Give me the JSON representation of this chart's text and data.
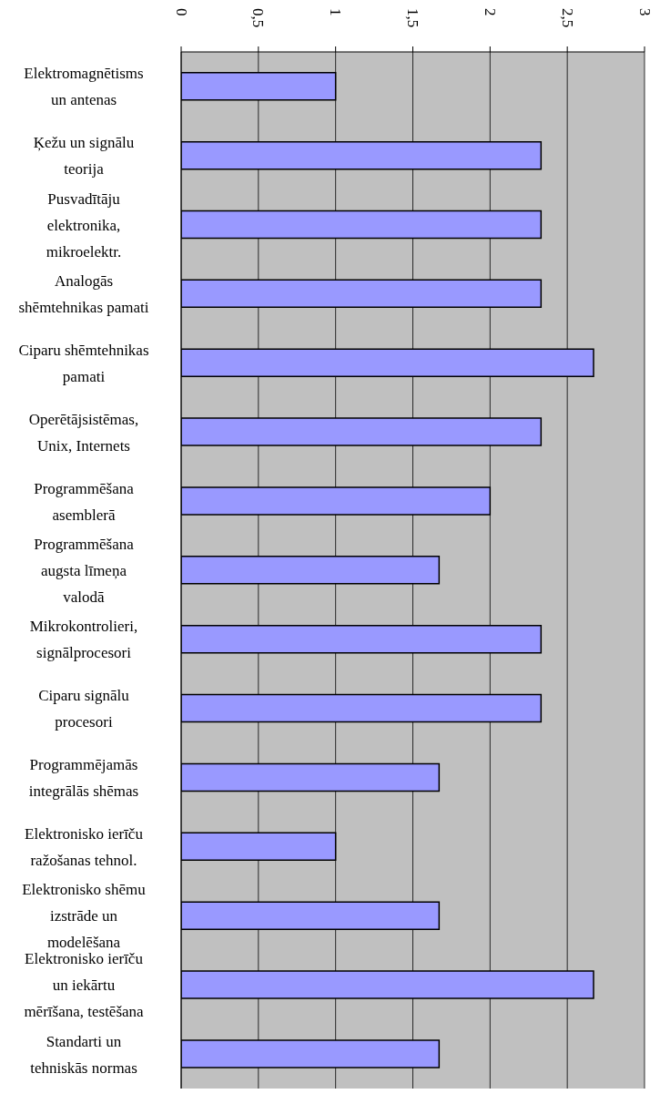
{
  "chart_data": {
    "type": "bar",
    "orientation": "horizontal",
    "categories": [
      "Elektromagnētisms un antenas",
      "Ķežu un signālu teorija",
      "Pusvadītāju elektronika, mikroelektr.",
      "Analogās shēmtehnikas pamati",
      "Ciparu shēmtehnikas pamati",
      "Operētājsistēmas, Unix, Internets",
      "Programmēšana asemblerā",
      "Programmēšana augsta līmeņa valodā",
      "Mikrokontrolieri, signālprocesori",
      "Ciparu signālu procesori",
      "Programmējamās integrālās shēmas",
      "Elektronisko ierīču ražošanas tehnol.",
      "Elektronisko shēmu izstrāde un modelēšana",
      "Elektronisko ierīču un iekārtu mērīšana, testēšana",
      "Standarti un tehniskās normas"
    ],
    "values": [
      1,
      2.33,
      2.33,
      2.33,
      2.67,
      2.33,
      2,
      1.67,
      2.33,
      2.33,
      1.67,
      1,
      1.67,
      2.67,
      1.67
    ],
    "color": "#9999ff",
    "xlim": [
      0,
      3
    ],
    "xticks": [
      0,
      {
        "value": 0.5,
        "label": "0,5"
      },
      1,
      {
        "value": 1.5,
        "label": "1,5"
      },
      2,
      {
        "value": 2.5,
        "label": "2,5"
      },
      3
    ],
    "grid": "x"
  }
}
